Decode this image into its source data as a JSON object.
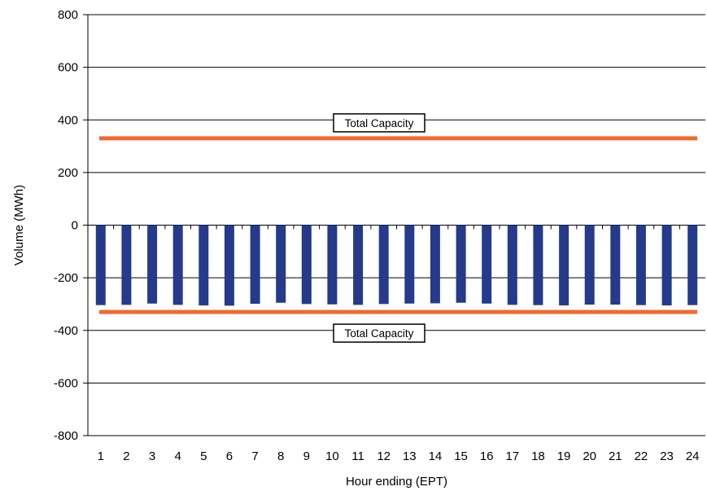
{
  "chart_data": {
    "type": "bar",
    "title": "",
    "xlabel": "Hour ending (EPT)",
    "ylabel": "Volume (MWh)",
    "ylim": [
      -800,
      800
    ],
    "yticks": [
      800,
      600,
      400,
      200,
      0,
      -200,
      -400,
      -600,
      -800
    ],
    "ytick_labels": [
      "800",
      "600",
      "400",
      "200",
      "0",
      "-200",
      "-400",
      "-600",
      "-800"
    ],
    "grid": "horizontal",
    "categories": [
      "1",
      "2",
      "3",
      "4",
      "5",
      "6",
      "7",
      "8",
      "9",
      "10",
      "11",
      "12",
      "13",
      "14",
      "15",
      "16",
      "17",
      "18",
      "19",
      "20",
      "21",
      "22",
      "23",
      "24"
    ],
    "series": [
      {
        "color": "#253a8a",
        "values": [
          -304,
          -303,
          -298,
          -303,
          -305,
          -306,
          -299,
          -295,
          -300,
          -301,
          -303,
          -300,
          -298,
          -297,
          -295,
          -298,
          -303,
          -304,
          -305,
          -302,
          -302,
          -304,
          -305,
          -304
        ]
      }
    ],
    "capacity_lines": [
      {
        "label": "Total Capacity",
        "value": 330,
        "color": "#f06a2e"
      },
      {
        "label": "Total Capacity",
        "value": -330,
        "color": "#f06a2e"
      }
    ]
  }
}
